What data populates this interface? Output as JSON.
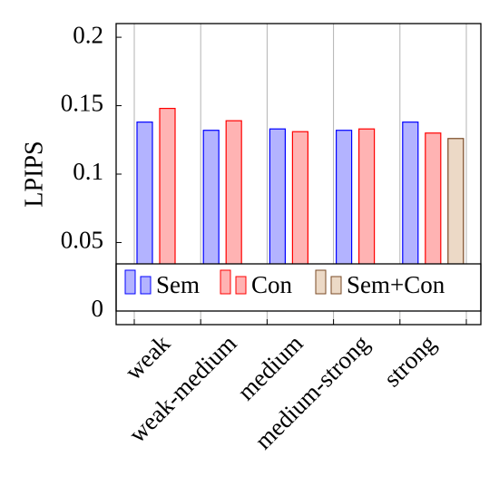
{
  "chart_data": {
    "type": "bar",
    "y_label": "LPIPS",
    "categories": [
      "weak",
      "weak-medium",
      "medium",
      "medium-strong",
      "strong"
    ],
    "series": [
      {
        "name": "Sem",
        "color": "#b3b3ff",
        "edge_color": "#0000ff",
        "values": [
          0.138,
          0.132,
          0.133,
          0.132,
          0.138
        ]
      },
      {
        "name": "Con",
        "color": "#ffb3b3",
        "edge_color": "#ff0000",
        "values": [
          0.148,
          0.139,
          0.131,
          0.133,
          0.13
        ]
      },
      {
        "name": "Sem+Con",
        "color": "#ecd9c6",
        "edge_color": "#7a4a26",
        "values": [
          null,
          null,
          null,
          null,
          0.126
        ]
      }
    ],
    "ylim": [
      -0.01,
      0.21
    ],
    "yticks": [
      0,
      0.05,
      0.1,
      0.15,
      0.2
    ],
    "grid": true
  }
}
